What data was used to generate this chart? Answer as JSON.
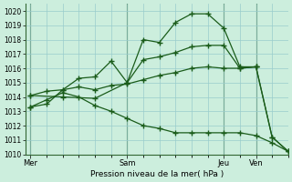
{
  "background_color": "#cceedd",
  "grid_color": "#99cccc",
  "line_color": "#1a5c1a",
  "xlabel": "Pression niveau de la mer( hPa )",
  "ylim": [
    1010,
    1020.5
  ],
  "yticks": [
    1010,
    1011,
    1012,
    1013,
    1014,
    1015,
    1016,
    1017,
    1018,
    1019,
    1020
  ],
  "xtick_labels": [
    "Mer",
    "Sam",
    "Jeu",
    "Ven"
  ],
  "xtick_positions": [
    0,
    36,
    72,
    84
  ],
  "xlim": [
    -2,
    96
  ],
  "vlines": [
    0,
    36,
    72,
    84
  ],
  "series": [
    {
      "x": [
        0,
        12,
        24,
        36,
        42,
        48,
        54,
        60,
        66,
        72,
        78,
        84
      ],
      "y": [
        1014.1,
        1014.0,
        1013.9,
        1015.0,
        1018.0,
        1017.8,
        1019.2,
        1019.8,
        1019.8,
        1018.8,
        1016.1,
        1016.1
      ]
    },
    {
      "x": [
        0,
        6,
        12,
        18,
        24,
        30,
        36,
        42,
        48,
        54,
        60,
        66,
        72,
        78,
        84,
        90,
        96
      ],
      "y": [
        1013.3,
        1013.5,
        1014.5,
        1014.7,
        1014.5,
        1014.8,
        1014.9,
        1015.2,
        1015.5,
        1015.7,
        1016.0,
        1016.1,
        1016.0,
        1016.0,
        1016.1,
        1011.2,
        1010.2
      ]
    },
    {
      "x": [
        0,
        6,
        12,
        18,
        24,
        30,
        36,
        42,
        48,
        54,
        60,
        66,
        72,
        78,
        84,
        90,
        96
      ],
      "y": [
        1014.1,
        1014.4,
        1014.5,
        1015.3,
        1015.4,
        1016.5,
        1015.0,
        1016.6,
        1016.8,
        1017.1,
        1017.5,
        1017.6,
        1017.6,
        1016.0,
        1016.1,
        1011.2,
        1010.2
      ]
    },
    {
      "x": [
        0,
        6,
        12,
        18,
        24,
        30,
        36,
        42,
        48,
        54,
        60,
        66,
        72,
        78,
        84,
        90,
        96
      ],
      "y": [
        1013.3,
        1013.8,
        1014.3,
        1014.0,
        1013.4,
        1013.0,
        1012.5,
        1012.0,
        1011.8,
        1011.5,
        1011.5,
        1011.5,
        1011.5,
        1011.5,
        1011.3,
        1010.8,
        1010.2
      ]
    }
  ]
}
